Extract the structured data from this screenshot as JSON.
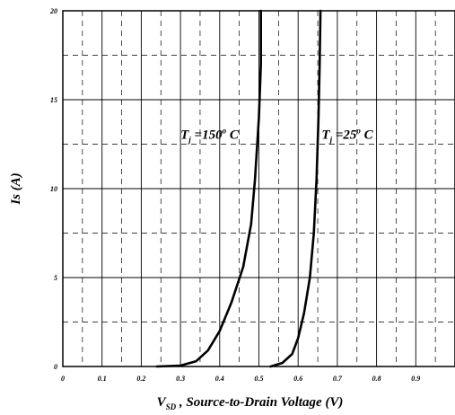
{
  "chart_data": {
    "type": "line",
    "title": "",
    "xlabel": {
      "main": "V",
      "sub": "SD",
      "rest": " , Source-to-Drain Voltage (V)"
    },
    "ylabel": "Is (A)",
    "xlim": [
      0,
      1.0
    ],
    "ylim": [
      0,
      20
    ],
    "x_ticks": [
      "0",
      "0.1",
      "0.2",
      "0.3",
      "0.4",
      "0.5",
      "0.6",
      "0.7",
      "0.8",
      "0.9"
    ],
    "y_ticks": [
      "0",
      "5",
      "10",
      "15",
      "20"
    ],
    "grid": true,
    "series": [
      {
        "label": {
          "main": "T",
          "sub": "j",
          "eq": " =150",
          "sup": "o",
          "unit": " C"
        },
        "x": [
          0.24,
          0.3,
          0.34,
          0.37,
          0.4,
          0.43,
          0.46,
          0.48,
          0.49,
          0.5,
          0.505,
          0.505
        ],
        "y": [
          0,
          0.05,
          0.3,
          0.9,
          2.0,
          3.6,
          5.6,
          8.0,
          10.5,
          14.0,
          17.0,
          20
        ]
      },
      {
        "label": {
          "main": "T",
          "sub": "j",
          "eq": " =25",
          "sup": "o",
          "unit": " C"
        },
        "x": [
          0.53,
          0.56,
          0.585,
          0.6,
          0.615,
          0.63,
          0.64,
          0.647,
          0.652,
          0.655,
          0.657
        ],
        "y": [
          0,
          0.2,
          0.7,
          1.6,
          3.0,
          5.0,
          7.5,
          10.5,
          14.0,
          17.0,
          20
        ]
      }
    ]
  }
}
